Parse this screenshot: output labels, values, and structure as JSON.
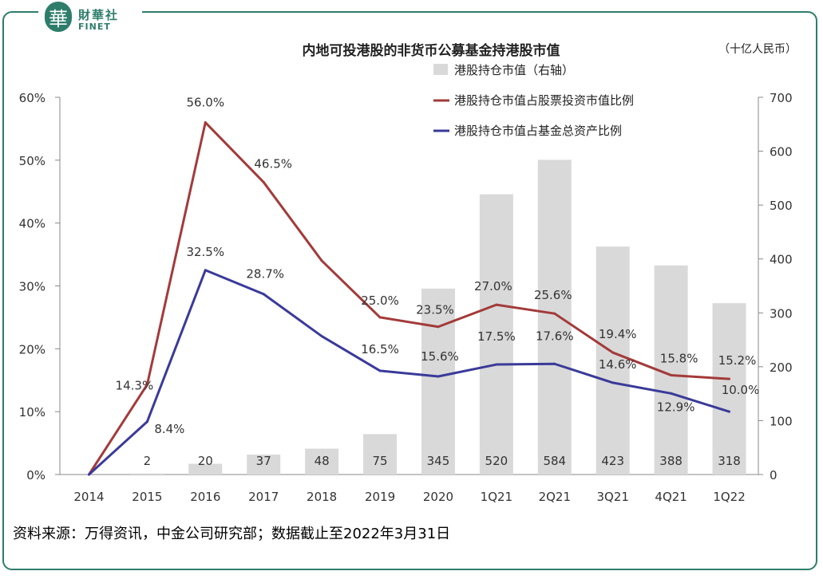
{
  "brand": {
    "logo_char": "華",
    "name_cn": "財華社",
    "name_en": "FINET"
  },
  "source_text": "资料来源：万得资讯，中金公司研究部；数据截止至2022年3月31日",
  "colors": {
    "bar": "#d9d9d9",
    "line_ratio_stock": "#a33a3a",
    "line_ratio_assets": "#3a3a9a",
    "brand": "#2e7d6b"
  },
  "chart_data": {
    "type": "bar+line",
    "title": "内地可投港股的非货币公募基金持港股市值",
    "unit_label": "（十亿人民币）",
    "categories": [
      "2014",
      "2015",
      "2016",
      "2017",
      "2018",
      "2019",
      "2020",
      "1Q21",
      "2Q21",
      "3Q21",
      "4Q21",
      "1Q22"
    ],
    "y_left": {
      "min": 0,
      "max": 60,
      "ticks": [
        "0%",
        "10%",
        "20%",
        "30%",
        "40%",
        "50%",
        "60%"
      ]
    },
    "y_right": {
      "min": 0,
      "max": 700,
      "ticks": [
        "0",
        "100",
        "200",
        "300",
        "400",
        "500",
        "600",
        "700"
      ]
    },
    "bars": {
      "name": "港股持仓市值（右轴）",
      "values": [
        0,
        2,
        20,
        37,
        48,
        75,
        345,
        520,
        584,
        423,
        388,
        318
      ],
      "labels": [
        "",
        "2",
        "20",
        "37",
        "48",
        "75",
        "345",
        "520",
        "584",
        "423",
        "388",
        "318"
      ]
    },
    "series": [
      {
        "name": "港股持仓市值占股票投资市值比例",
        "values": [
          0,
          14.3,
          56.0,
          46.5,
          34.0,
          25.0,
          23.5,
          27.0,
          25.6,
          19.4,
          15.8,
          15.2
        ],
        "labels": [
          "",
          "14.3%",
          "56.0%",
          "46.5%",
          "",
          "25.0%",
          "23.5%",
          "27.0%",
          "25.6%",
          "19.4%",
          "15.8%",
          "15.2%"
        ]
      },
      {
        "name": "港股持仓市值占基金总资产比例",
        "values": [
          0,
          8.4,
          32.5,
          28.7,
          22.0,
          16.5,
          15.6,
          17.5,
          17.6,
          14.6,
          12.9,
          10.0
        ],
        "labels": [
          "",
          "8.4%",
          "32.5%",
          "28.7%",
          "",
          "16.5%",
          "15.6%",
          "17.5%",
          "17.6%",
          "14.6%",
          "12.9%",
          "10.0%"
        ]
      }
    ],
    "legend_position": "top-right",
    "grid": false
  }
}
